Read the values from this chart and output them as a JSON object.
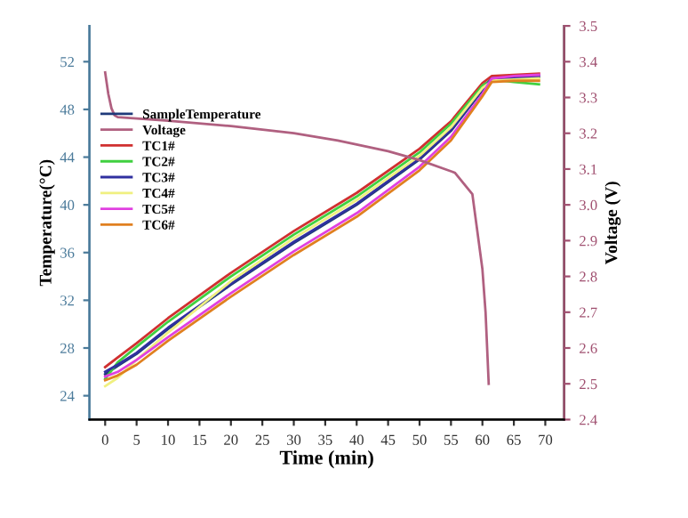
{
  "chart_data": {
    "type": "line",
    "xlabel": "Time (min)",
    "ylabel": "Temperature(°C)",
    "y2label": "Voltage (V)",
    "xlim": [
      -2.5,
      73
    ],
    "xticks": [
      0,
      5,
      10,
      15,
      20,
      25,
      30,
      35,
      40,
      45,
      50,
      55,
      60,
      65,
      70
    ],
    "ylim": [
      22,
      55
    ],
    "yticks": [
      24,
      28,
      32,
      36,
      40,
      44,
      48,
      52
    ],
    "y2lim": [
      2.4,
      3.5
    ],
    "y2ticks": [
      2.4,
      2.5,
      2.6,
      2.7,
      2.8,
      2.9,
      {
        "value": 3.0,
        "label": "3.0"
      },
      3.1,
      3.2,
      3.3,
      3.4,
      3.5
    ],
    "grid": false,
    "legend": "top left",
    "marker": "none",
    "line_style": "solid",
    "series": [
      {
        "name": "SampleTemperature",
        "color": "#1f3a7a",
        "x": [
          0,
          2,
          5,
          10,
          20,
          30,
          40,
          50,
          55,
          60,
          61.5,
          65,
          69
        ],
        "values": [
          25.8,
          26.5,
          27.5,
          29.6,
          33.3,
          36.8,
          40.0,
          43.8,
          46.2,
          49.6,
          50.5,
          50.6,
          50.7
        ]
      },
      {
        "name": "Voltage",
        "color": "#b06080",
        "axis": "y2",
        "x": [
          0,
          0.5,
          1,
          1.5,
          2,
          10,
          20,
          30,
          37,
          45,
          50,
          55.6,
          58.4,
          60,
          60.5,
          61
        ],
        "values": [
          3.37,
          3.31,
          3.27,
          3.25,
          3.245,
          3.235,
          3.22,
          3.2,
          3.18,
          3.15,
          3.125,
          3.09,
          3.03,
          2.82,
          2.7,
          2.5
        ]
      },
      {
        "name": "TC1#",
        "color": "#d03030",
        "x": [
          0,
          2,
          5,
          10,
          20,
          30,
          40,
          50,
          55,
          60,
          61.5,
          65,
          69
        ],
        "values": [
          26.4,
          27.2,
          28.4,
          30.5,
          34.3,
          37.8,
          41.0,
          44.7,
          47.0,
          50.2,
          50.8,
          50.9,
          51.0
        ]
      },
      {
        "name": "TC2#",
        "color": "#40d040",
        "x": [
          0,
          2,
          5,
          10,
          20,
          30,
          40,
          50,
          55,
          60,
          61.5,
          65,
          69
        ],
        "values": [
          25.4,
          26.8,
          28.1,
          30.2,
          34.0,
          37.5,
          40.7,
          44.4,
          46.8,
          50.0,
          50.5,
          50.3,
          50.1
        ]
      },
      {
        "name": "TC3#",
        "color": "#3030a0",
        "x": [
          0,
          2,
          5,
          10,
          20,
          30,
          40,
          50,
          55,
          60,
          61.5,
          65,
          69
        ],
        "values": [
          26.0,
          26.6,
          27.6,
          29.7,
          33.4,
          36.9,
          40.1,
          43.9,
          46.3,
          49.7,
          50.6,
          50.7,
          50.8
        ]
      },
      {
        "name": "TC4#",
        "color": "#f0f080",
        "x": [
          0,
          2,
          5,
          10,
          20,
          30,
          40,
          50,
          55,
          60,
          61.5,
          65,
          69
        ],
        "values": [
          24.8,
          25.5,
          27.0,
          29.3,
          33.6,
          37.2,
          40.4,
          44.1,
          46.5,
          49.8,
          50.4,
          50.5,
          50.6
        ]
      },
      {
        "name": "TC5#",
        "color": "#e040e0",
        "x": [
          0,
          2,
          5,
          10,
          20,
          30,
          40,
          50,
          55,
          60,
          61.5,
          65,
          69
        ],
        "values": [
          25.6,
          26.0,
          27.0,
          28.9,
          32.6,
          36.1,
          39.3,
          43.2,
          45.7,
          49.3,
          50.6,
          50.8,
          50.9
        ]
      },
      {
        "name": "TC6#",
        "color": "#e08020",
        "x": [
          0,
          2,
          5,
          10,
          20,
          30,
          40,
          50,
          55,
          60,
          61.5,
          65,
          69
        ],
        "values": [
          25.3,
          25.7,
          26.6,
          28.6,
          32.3,
          35.8,
          39.0,
          42.9,
          45.4,
          49.1,
          50.3,
          50.4,
          50.4
        ]
      }
    ]
  }
}
